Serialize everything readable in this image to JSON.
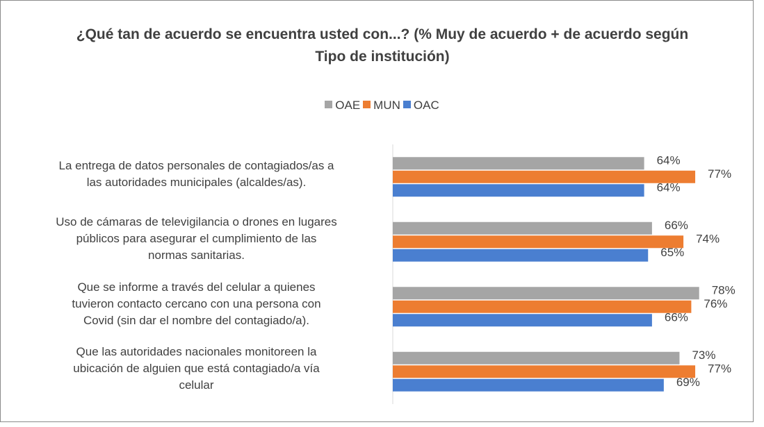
{
  "chart_data": {
    "type": "bar",
    "orientation": "horizontal",
    "title": "¿Qué tan de acuerdo se encuentra usted con...? (% Muy de acuerdo + de acuerdo según Tipo de institución)",
    "categories": [
      "La entrega de datos personales de contagiados/as a\nlas autoridades municipales (alcaldes/as).",
      "Uso de cámaras de televigilancia o drones en lugares\npúblicos para asegurar el cumplimiento de las\nnormas sanitarias.",
      "Que se informe a través del celular a quienes\ntuvieron contacto cercano con una persona con\nCovid (sin dar el nombre del contagiado/a).",
      "Que las autoridades nacionales monitoreen la\nubicación de alguien que está contagiado/a vía\ncelular"
    ],
    "series": [
      {
        "name": "OAE",
        "color": "#a5a5a5",
        "values": [
          64,
          66,
          78,
          73
        ],
        "value_labels": [
          "64%",
          "66%",
          "78%",
          "73%"
        ]
      },
      {
        "name": "MUN",
        "color": "#ed7d31",
        "values": [
          77,
          74,
          76,
          77
        ],
        "value_labels": [
          "77%",
          "74%",
          "76%",
          "77%"
        ]
      },
      {
        "name": "OAC",
        "color": "#4a7fd0",
        "values": [
          64,
          65,
          66,
          69
        ],
        "value_labels": [
          "64%",
          "65%",
          "66%",
          "69%"
        ]
      }
    ],
    "xlim": [
      0,
      80
    ],
    "legend": "top"
  }
}
